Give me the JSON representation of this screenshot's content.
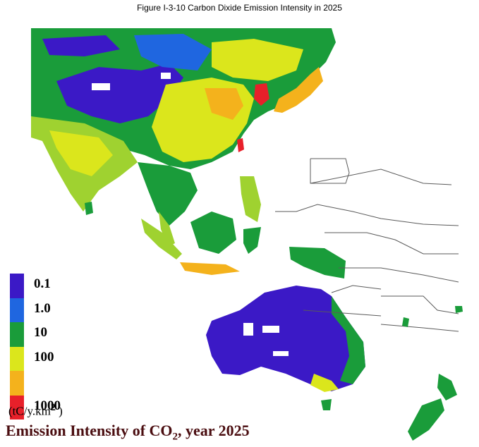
{
  "title": "Figure I-3-10   Carbon Dixide Emission Intensity in 2025",
  "legend": {
    "items": [
      {
        "label": "0.1",
        "color": "#3b19c6"
      },
      {
        "label": "1.0",
        "color": "#1f66e0"
      },
      {
        "label": "10",
        "color": "#1a9c3a"
      },
      {
        "label": "100",
        "color": "#dbe61c"
      },
      {
        "label": "",
        "color": "#f4b21c"
      },
      {
        "label": "1000",
        "color": "#e8202a"
      }
    ],
    "unit_prefix": "(tC/y.km",
    "unit_power": "2",
    "unit_suffix": " )"
  },
  "caption": {
    "prefix": "Emission Intensity of CO",
    "sub": "2",
    "suffix": ", year 2025"
  },
  "colors": {
    "indigo": "#3b19c6",
    "blue": "#1f66e0",
    "green": "#1a9c3a",
    "lightgreen": "#9fd230",
    "yellow": "#dbe61c",
    "orange": "#f4b21c",
    "red": "#e8202a",
    "border": "#5a5a5a"
  }
}
